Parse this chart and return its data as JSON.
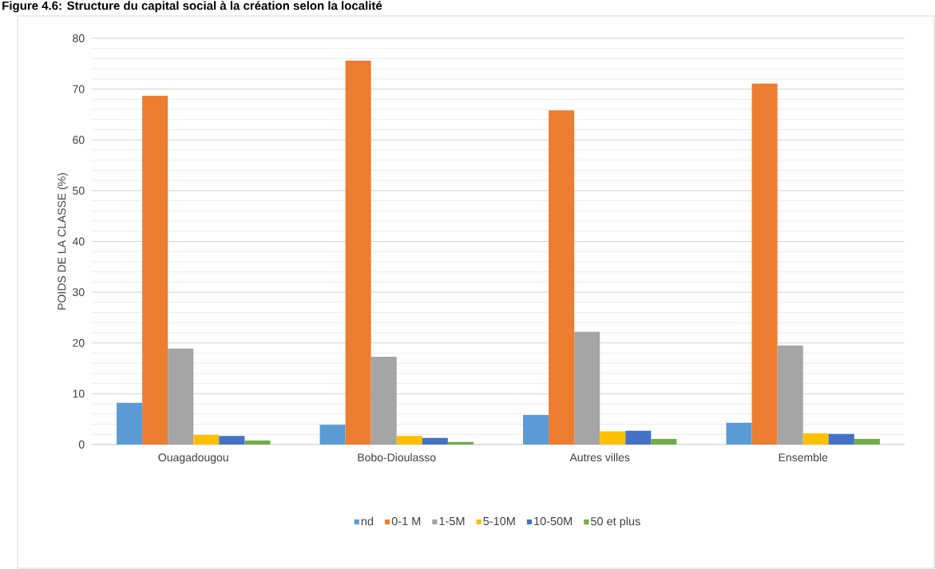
{
  "chart_data": {
    "type": "bar",
    "title": "Figure 4.6: Structure du capital social à la création selon la localité",
    "ylabel": "POIDS DE LA CLASSE (%)",
    "categories": [
      "Ouagadougou",
      "Bobo-Dioulasso",
      "Autres villes",
      "Ensemble"
    ],
    "series": [
      {
        "name": "nd",
        "color": "#5b9bd5",
        "values": [
          8.2,
          3.9,
          5.8,
          4.3
        ]
      },
      {
        "name": "0-1 M",
        "color": "#ed7d31",
        "values": [
          68.7,
          75.6,
          65.8,
          71.1
        ]
      },
      {
        "name": "1-5M",
        "color": "#a5a5a5",
        "values": [
          18.9,
          17.3,
          22.2,
          19.5
        ]
      },
      {
        "name": "5-10M",
        "color": "#ffc000",
        "values": [
          1.9,
          1.7,
          2.6,
          2.2
        ]
      },
      {
        "name": "10-50M",
        "color": "#4472c4",
        "values": [
          1.7,
          1.3,
          2.7,
          2.1
        ]
      },
      {
        "name": "50 et plus",
        "color": "#70ad47",
        "values": [
          0.8,
          0.5,
          1.1,
          1.1
        ]
      }
    ],
    "ylim": [
      0,
      80
    ],
    "yticks": [
      0,
      10,
      20,
      30,
      40,
      50,
      60,
      70,
      80
    ],
    "grid": "y",
    "legend": "bottom"
  }
}
